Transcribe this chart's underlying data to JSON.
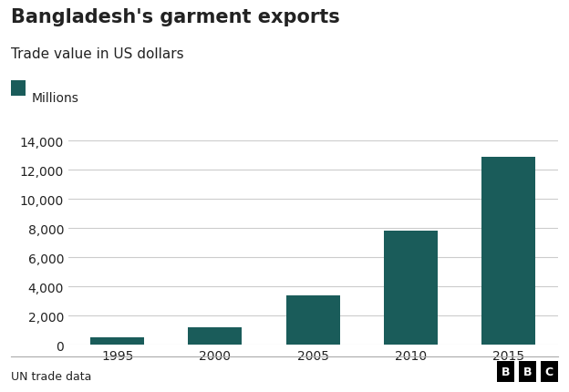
{
  "title": "Bangladesh's garment exports",
  "subtitle": "Trade value in US dollars",
  "legend_label": "Millions",
  "footer": "UN trade data",
  "categories": [
    "1995",
    "2000",
    "2005",
    "2010",
    "2015"
  ],
  "values": [
    490,
    1200,
    3400,
    7800,
    12900
  ],
  "bar_color": "#1a5c5a",
  "background_color": "#ffffff",
  "ylim": [
    0,
    14000
  ],
  "yticks": [
    0,
    2000,
    4000,
    6000,
    8000,
    10000,
    12000,
    14000
  ],
  "title_fontsize": 15,
  "subtitle_fontsize": 11,
  "legend_fontsize": 10,
  "tick_fontsize": 10,
  "footer_fontsize": 9,
  "grid_color": "#cccccc",
  "text_color": "#222222",
  "bbc_logo_color": "#000000"
}
